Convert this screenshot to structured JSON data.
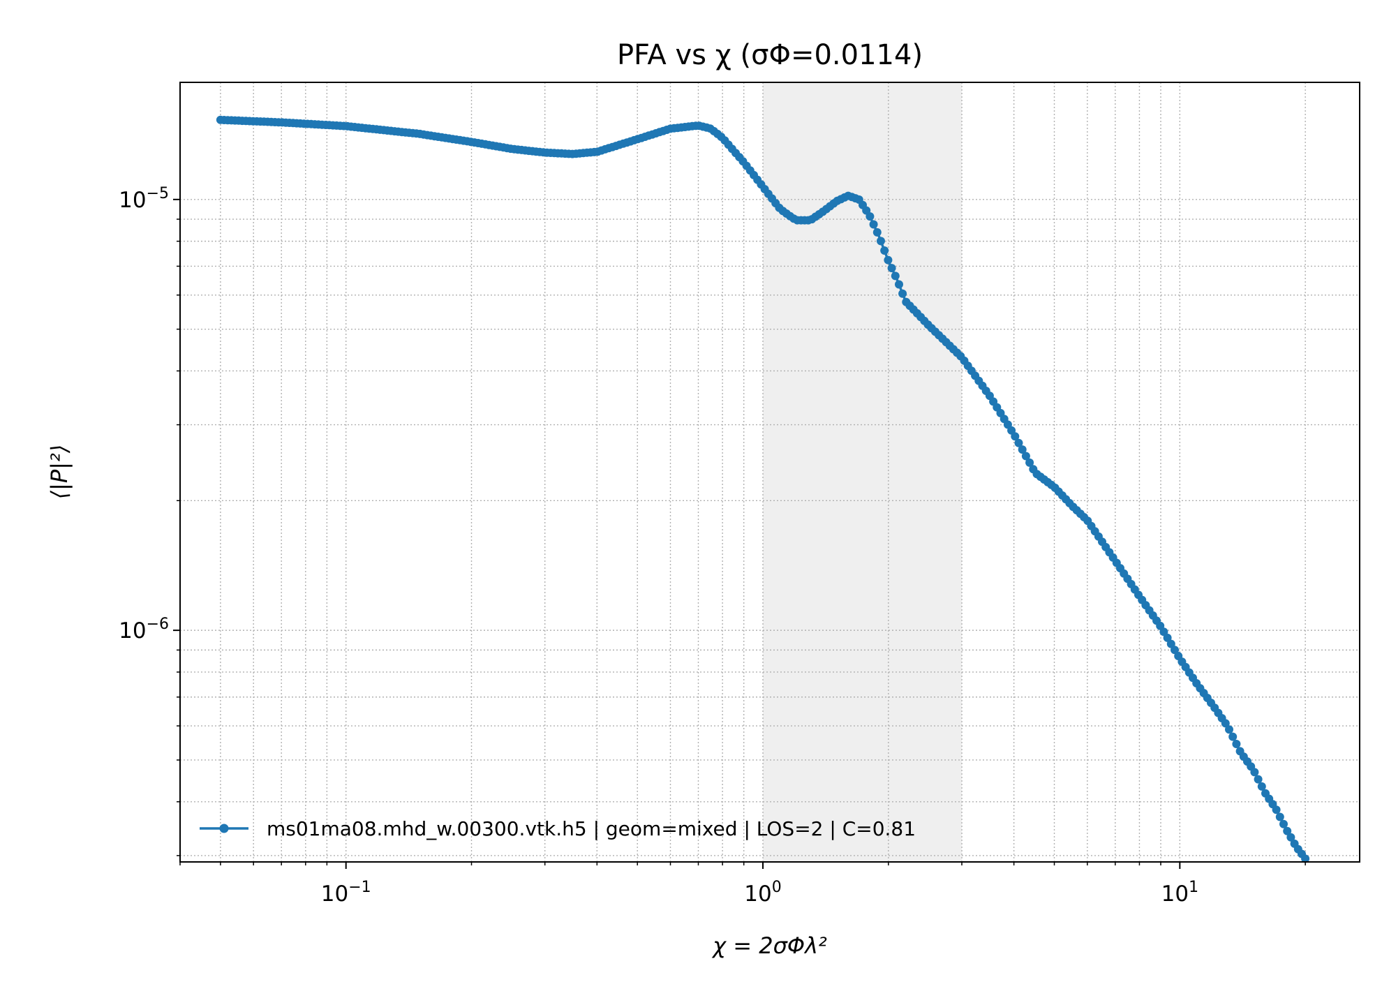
{
  "chart_data": {
    "type": "line",
    "title": "PFA vs χ  (σΦ=0.0114)",
    "xlabel": "χ = 2σΦλ²",
    "ylabel": "⟨|P|²⟩",
    "x_scale": "log",
    "y_scale": "log",
    "xlim": [
      0.04,
      27
    ],
    "ylim": [
      2.9e-07,
      1.87e-05
    ],
    "grid": true,
    "grid_style": "dotted",
    "legend_position": "lower-left",
    "shaded_region": {
      "x_start": 1.0,
      "x_end": 3.0,
      "color": "#efefef"
    },
    "x_ticks": [
      {
        "value": 0.1,
        "base": "10",
        "exp": "−1"
      },
      {
        "value": 1,
        "base": "10",
        "exp": "0"
      },
      {
        "value": 10,
        "base": "10",
        "exp": "1"
      }
    ],
    "y_ticks": [
      {
        "value": 1e-06,
        "base": "10",
        "exp": "−6"
      },
      {
        "value": 1e-05,
        "base": "10",
        "exp": "−5"
      }
    ],
    "series": [
      {
        "name": "ms01ma08.mhd_w.00300.vtk.h5 | geom=mixed | LOS=2 | C=0.81",
        "color": "#1f77b4",
        "marker": "circle",
        "points": [
          [
            0.05,
            1.53e-05
          ],
          [
            0.07,
            1.51e-05
          ],
          [
            0.1,
            1.48e-05
          ],
          [
            0.15,
            1.42e-05
          ],
          [
            0.2,
            1.36e-05
          ],
          [
            0.25,
            1.31e-05
          ],
          [
            0.3,
            1.285e-05
          ],
          [
            0.35,
            1.275e-05
          ],
          [
            0.4,
            1.29e-05
          ],
          [
            0.5,
            1.38e-05
          ],
          [
            0.6,
            1.46e-05
          ],
          [
            0.7,
            1.485e-05
          ],
          [
            0.75,
            1.46e-05
          ],
          [
            0.8,
            1.39e-05
          ],
          [
            0.9,
            1.22e-05
          ],
          [
            1.0,
            1.07e-05
          ],
          [
            1.1,
            9.5e-06
          ],
          [
            1.2,
            8.95e-06
          ],
          [
            1.3,
            8.95e-06
          ],
          [
            1.4,
            9.4e-06
          ],
          [
            1.5,
            9.9e-06
          ],
          [
            1.6,
            1.02e-05
          ],
          [
            1.7,
            1e-05
          ],
          [
            1.8,
            9.2e-06
          ],
          [
            1.9,
            8.2e-06
          ],
          [
            2.0,
            7.2e-06
          ],
          [
            2.1,
            6.5e-06
          ],
          [
            2.2,
            5.8e-06
          ],
          [
            2.5,
            5.1e-06
          ],
          [
            3.0,
            4.3e-06
          ],
          [
            3.5,
            3.5e-06
          ],
          [
            4.0,
            2.85e-06
          ],
          [
            4.5,
            2.32e-06
          ],
          [
            5.0,
            2.15e-06
          ],
          [
            5.5,
            1.95e-06
          ],
          [
            6.0,
            1.8e-06
          ],
          [
            7.0,
            1.45e-06
          ],
          [
            8.0,
            1.2e-06
          ],
          [
            9.0,
            1.02e-06
          ],
          [
            10.0,
            8.6e-07
          ],
          [
            11.0,
            7.5e-07
          ],
          [
            12.0,
            6.7e-07
          ],
          [
            13.0,
            6e-07
          ],
          [
            14.0,
            5.2e-07
          ],
          [
            15.0,
            4.75e-07
          ],
          [
            16.0,
            4.2e-07
          ],
          [
            17.0,
            3.85e-07
          ],
          [
            18.0,
            3.45e-07
          ],
          [
            19.0,
            3.15e-07
          ],
          [
            20.0,
            2.95e-07
          ]
        ]
      }
    ]
  }
}
